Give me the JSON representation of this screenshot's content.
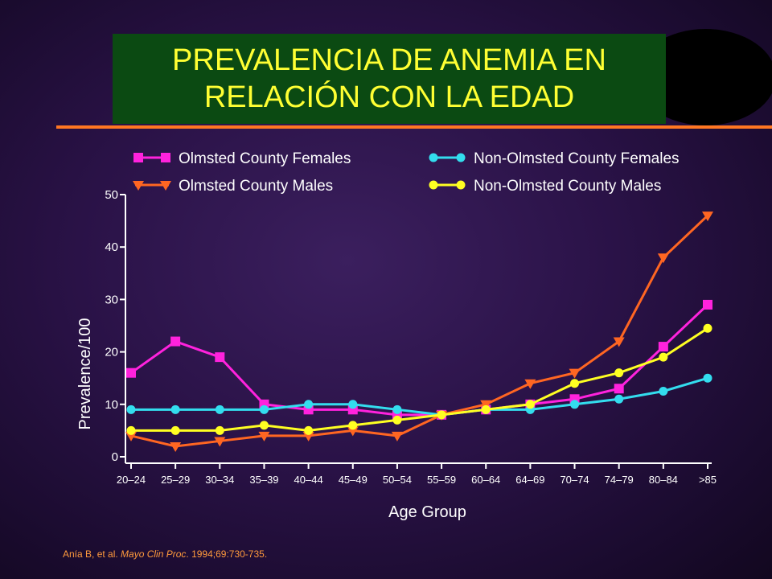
{
  "title": {
    "line1": "PREVALENCIA DE ANEMIA EN",
    "line2": "RELACIÓN CON LA EDAD"
  },
  "citation": {
    "prefix": "Anía B, et al. ",
    "journal": "Mayo Clin Proc",
    "suffix": ". 1994;69:730-735."
  },
  "colors": {
    "title_bg": "#0b4a12",
    "title_text": "#ffff33",
    "rule": "#ff7722",
    "axis": "#ffffff"
  },
  "chart_data": {
    "type": "line",
    "xlabel": "Age Group",
    "ylabel": "Prevalence/100",
    "ylim": [
      0,
      50
    ],
    "yticks": [
      0,
      10,
      20,
      30,
      40,
      50
    ],
    "grid": false,
    "legend_placement": "top",
    "categories": [
      "20–24",
      "25–29",
      "30–34",
      "35–39",
      "40–44",
      "45–49",
      "50–54",
      "55–59",
      "60–64",
      "64–69",
      "70–74",
      "74–79",
      "80–84",
      ">85"
    ],
    "series": [
      {
        "name": "Olmsted County Females",
        "color": "#ff22dd",
        "marker": "square",
        "values": [
          16,
          22,
          19,
          10,
          9,
          9,
          8,
          8,
          9,
          10,
          11,
          13,
          21,
          29
        ]
      },
      {
        "name": "Non-Olmsted County Females",
        "color": "#33ddee",
        "marker": "circle",
        "values": [
          9,
          9,
          9,
          9,
          10,
          10,
          9,
          8,
          9,
          9,
          10,
          11,
          12.5,
          15
        ]
      },
      {
        "name": "Olmsted County Males",
        "color": "#ff6622",
        "marker": "triangle",
        "values": [
          4,
          2,
          3,
          4,
          4,
          5,
          4,
          8,
          10,
          14,
          16,
          22,
          38,
          46
        ]
      },
      {
        "name": "Non-Olmsted County Males",
        "color": "#ffff22",
        "marker": "circle",
        "values": [
          5,
          5,
          5,
          6,
          5,
          6,
          7,
          8,
          9,
          10,
          14,
          16,
          19,
          24.5
        ]
      }
    ]
  }
}
